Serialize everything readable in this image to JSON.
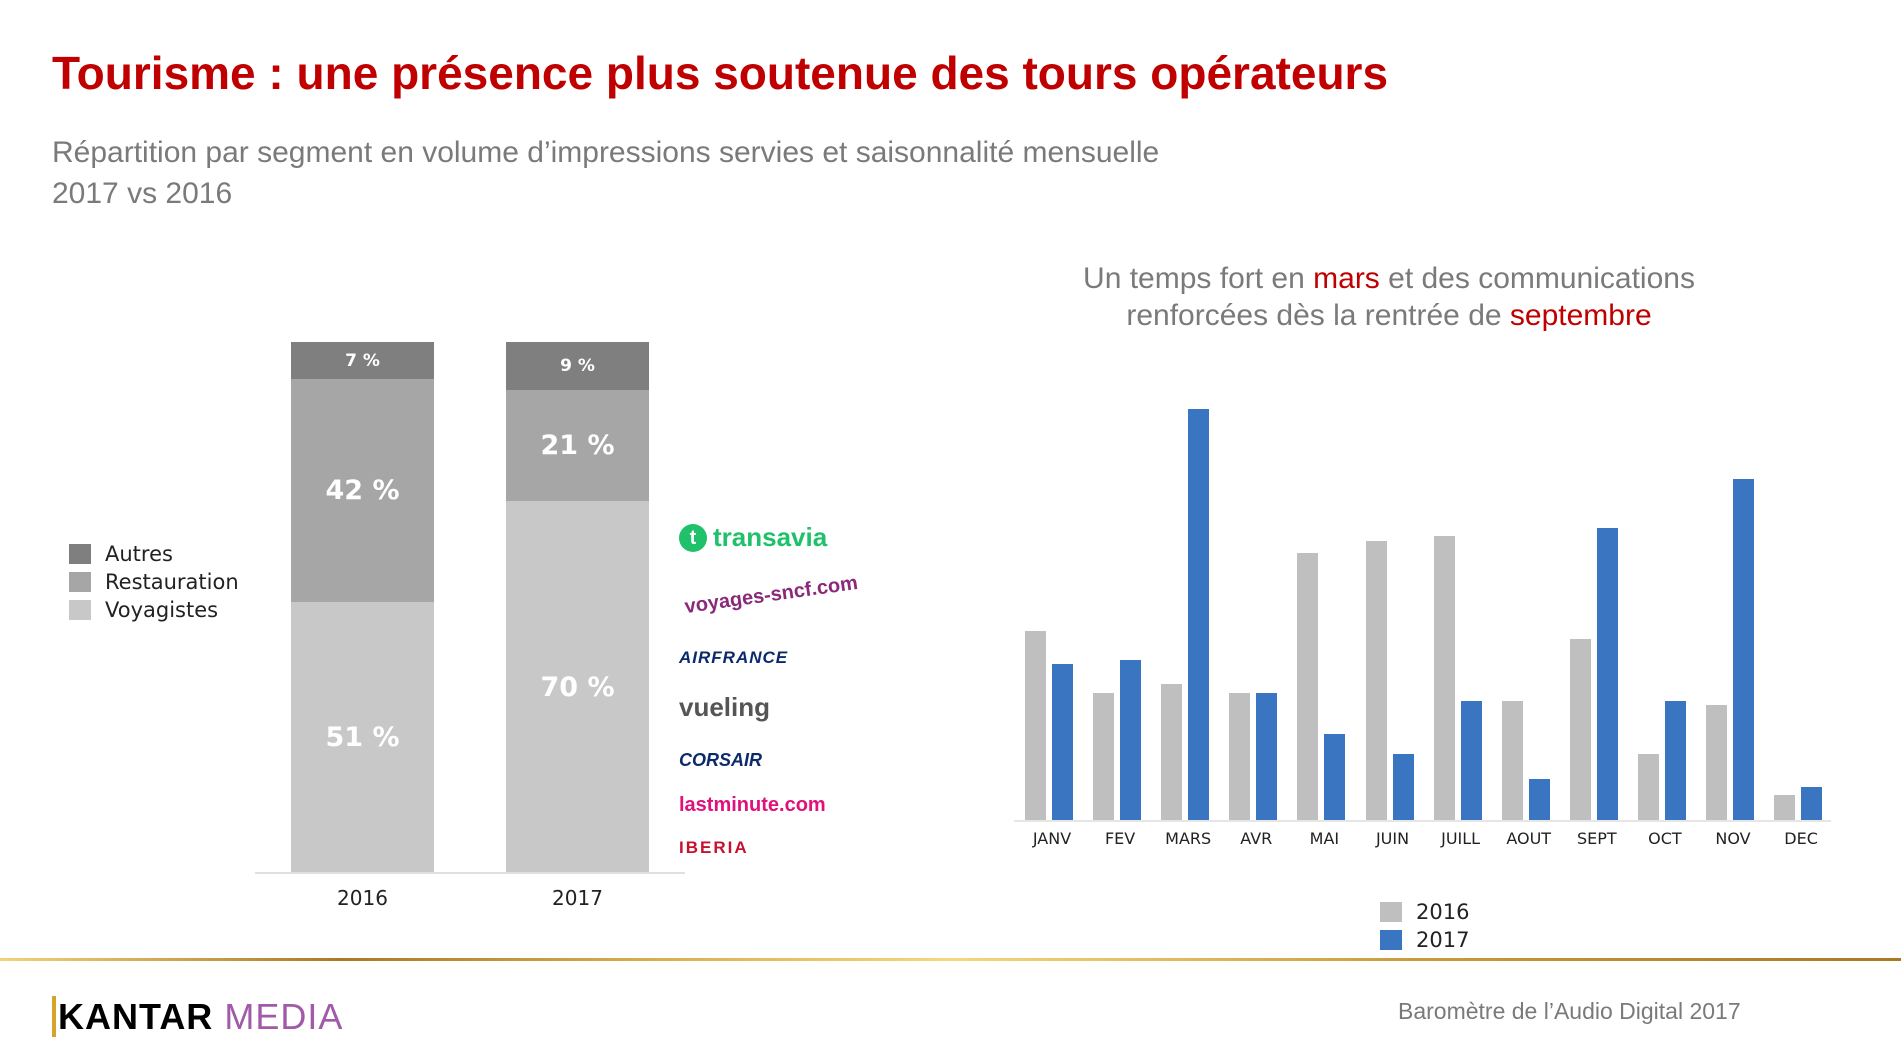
{
  "title": "Tourisme : une présence plus soutenue des tours opérateurs",
  "subtitle_line1": "Répartition par segment en volume d’impressions servies et saisonnalité mensuelle",
  "subtitle_line2": "2017 vs 2016",
  "right_title": {
    "part1": "Un temps fort en ",
    "highlight1": "mars",
    "part2": " et des communications",
    "part3": "renforcées dès la rentrée de ",
    "highlight2": "septembre"
  },
  "logos": [
    "transavia",
    "voyages-sncf.com",
    "AIRFRANCE",
    "vueling",
    "CORSAIR",
    "lastminute.com",
    "IBERIA"
  ],
  "footer": {
    "brand_a": "KANTAR",
    "brand_b": "MEDIA",
    "right": "Baromètre de l’Audio Digital 2017"
  },
  "colors": {
    "autres": "#7f7f7f",
    "restauration": "#a6a6a6",
    "voyagistes": "#c8c8c8",
    "s2016": "#bfbfbf",
    "s2017": "#3a75c1",
    "accent": "#c00000"
  },
  "chart_data": [
    {
      "type": "bar",
      "stacked": true,
      "categories": [
        "2016",
        "2017"
      ],
      "legend": [
        "Autres",
        "Restauration",
        "Voyagistes"
      ],
      "legend_position": "left",
      "series": [
        {
          "name": "Voyagistes",
          "values": [
            51,
            70
          ],
          "labels": [
            "51 %",
            "70 %"
          ]
        },
        {
          "name": "Restauration",
          "values": [
            42,
            21
          ],
          "labels": [
            "42 %",
            "21 %"
          ]
        },
        {
          "name": "Autres",
          "values": [
            7,
            9
          ],
          "labels": [
            "7 %",
            "9 %"
          ]
        }
      ],
      "ylim": [
        0,
        100
      ]
    },
    {
      "type": "bar",
      "categories": [
        "JANV",
        "FEV",
        "MARS",
        "AVR",
        "MAI",
        "JUIN",
        "JUILL",
        "AOUT",
        "SEPT",
        "OCT",
        "NOV",
        "DEC"
      ],
      "series": [
        {
          "name": "2016",
          "values": [
            46,
            31,
            33,
            31,
            65,
            68,
            69,
            29,
            44,
            16,
            28,
            6
          ]
        },
        {
          "name": "2017",
          "values": [
            38,
            39,
            100,
            31,
            21,
            16,
            29,
            10,
            71,
            29,
            83,
            8
          ]
        }
      ],
      "legend_position": "bottom",
      "ylim": [
        0,
        100
      ],
      "grid": false
    }
  ]
}
